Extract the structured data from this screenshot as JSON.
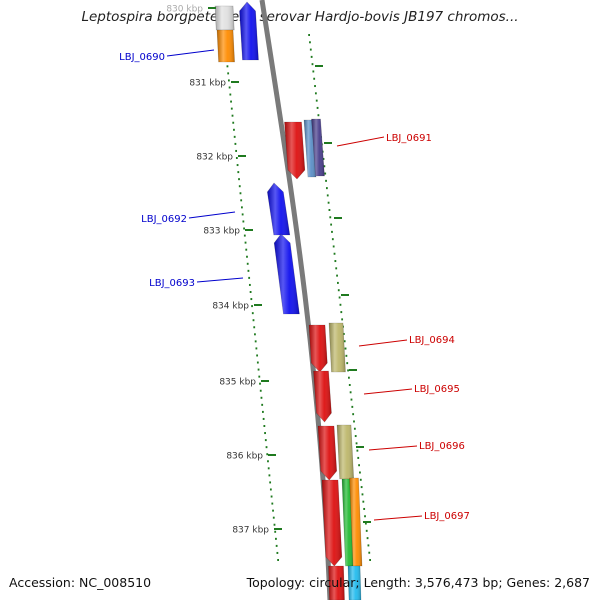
{
  "title": "Leptospira borgpetersenii serovar Hardjo-bovis JB197 chromos...",
  "accession": "Accession: NC_008510",
  "summary": "Topology: circular; Length: 3,576,473 bp; Genes: 2,687",
  "ticks": [
    {
      "label": "830 kbp",
      "kbp": 830
    },
    {
      "label": "831 kbp",
      "kbp": 831
    },
    {
      "label": "832 kbp",
      "kbp": 832
    },
    {
      "label": "833 kbp",
      "kbp": 833
    },
    {
      "label": "834 kbp",
      "kbp": 834
    },
    {
      "label": "835 kbp",
      "kbp": 835
    },
    {
      "label": "836 kbp",
      "kbp": 836
    },
    {
      "label": "837 kbp",
      "kbp": 837
    }
  ],
  "genes": [
    {
      "label": "LBJ_0690",
      "strand": "reverse",
      "color": "#1010ee"
    },
    {
      "label": "LBJ_0691",
      "strand": "forward",
      "color": "#dd1010"
    },
    {
      "label": "LBJ_0692",
      "strand": "reverse",
      "color": "#1010ee"
    },
    {
      "label": "LBJ_0693",
      "strand": "reverse",
      "color": "#1010ee"
    },
    {
      "label": "LBJ_0694",
      "strand": "forward",
      "color": "#dd1010"
    },
    {
      "label": "LBJ_0695",
      "strand": "forward",
      "color": "#dd1010"
    },
    {
      "label": "LBJ_0696",
      "strand": "forward",
      "color": "#dd1010"
    },
    {
      "label": "LBJ_0697",
      "strand": "forward",
      "color": "#dd1010"
    }
  ],
  "colors": {
    "backbone": "#7a7a7a",
    "dots": "#1f7a1f",
    "forward_label": "#cc0000",
    "reverse_label": "#0000cc",
    "orange": "#ff8c00",
    "khaki": "#bdb76b",
    "steelblue": "#5b8fc7",
    "darkslate": "#483d8b",
    "green": "#22bb33",
    "cyan": "#22bbee"
  }
}
